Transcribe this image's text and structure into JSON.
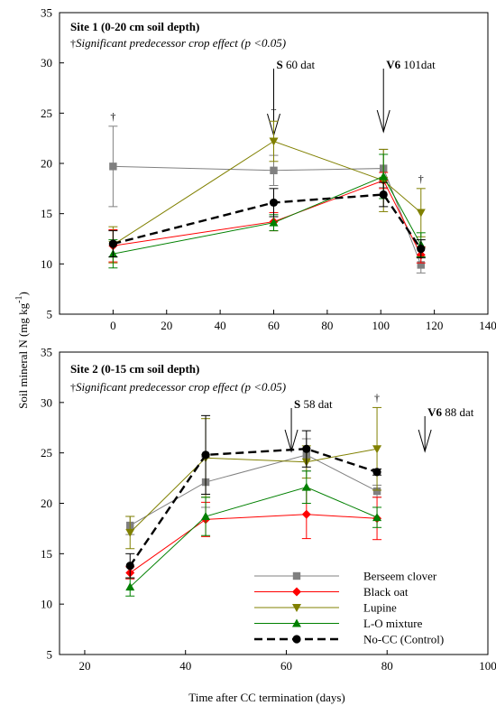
{
  "figure": {
    "ylabel_main": "Soil mineral N (mg kg",
    "ylabel_sup": "-1",
    "ylabel_close": ")",
    "xlabel": "Time after CC termination (days)"
  },
  "legend": {
    "placement": "bottom-right of lower panel",
    "entries": [
      {
        "name": "Berseem clover",
        "color": "#808080",
        "marker": "square",
        "dash": "solid"
      },
      {
        "name": "Black oat",
        "color": "#ff0000",
        "marker": "diamond",
        "dash": "solid"
      },
      {
        "name": "Lupine",
        "color": "#808000",
        "marker": "triangle-down",
        "dash": "solid"
      },
      {
        "name": "L-O mixture",
        "color": "#008000",
        "marker": "triangle-up",
        "dash": "solid"
      },
      {
        "name": "No-CC (Control)",
        "color": "#000000",
        "marker": "circle",
        "dash": "dashed"
      }
    ]
  },
  "chart_data": [
    {
      "type": "line",
      "title": "Site 1 (0-20 cm soil depth)",
      "note_symbol": "†",
      "note_text": "Significant predecessor crop effect (p <0.05)",
      "xlim": [
        -20,
        140
      ],
      "ylim": [
        5,
        35
      ],
      "xticks": [
        "0",
        "20",
        "40",
        "60",
        "80",
        "100",
        "120",
        "140"
      ],
      "xtick_values": [
        0,
        20,
        40,
        60,
        80,
        100,
        120,
        140
      ],
      "yticks": [
        "5",
        "10",
        "15",
        "20",
        "25",
        "30",
        "35"
      ],
      "ytick_values": [
        5,
        10,
        15,
        20,
        25,
        30,
        35
      ],
      "x": [
        0,
        60,
        101,
        115
      ],
      "series": [
        {
          "name": "Berseem clover",
          "values": [
            19.7,
            19.3,
            19.5,
            9.9
          ],
          "err": [
            4.0,
            1.5,
            1.9,
            0.8
          ]
        },
        {
          "name": "Black oat",
          "values": [
            11.8,
            14.2,
            18.3,
            10.9
          ],
          "err": [
            1.6,
            0.9,
            0.8,
            0.8
          ]
        },
        {
          "name": "Lupine",
          "values": [
            11.9,
            22.2,
            18.3,
            15.1
          ],
          "err": [
            1.8,
            2.0,
            3.1,
            2.4
          ]
        },
        {
          "name": "L-O mixture",
          "values": [
            11.0,
            14.1,
            18.7,
            11.9
          ],
          "err": [
            1.4,
            0.8,
            2.2,
            1.2
          ]
        },
        {
          "name": "No-CC (Control)",
          "values": [
            12.0,
            16.1,
            16.9,
            11.5
          ],
          "err": [
            1.3,
            1.4,
            1.2,
            0.9
          ]
        }
      ],
      "daggers": [
        0,
        60,
        115
      ],
      "annotations": [
        {
          "bold": "S",
          "text": " 60 dat",
          "x": 60
        },
        {
          "bold": "V6",
          "text": " 101dat",
          "x": 101
        }
      ]
    },
    {
      "type": "line",
      "title": "Site 2 (0-15 cm soil depth)",
      "note_symbol": "†",
      "note_text": "Significant predecessor crop effect (p <0.05)",
      "xlim": [
        15,
        100
      ],
      "ylim": [
        5,
        35
      ],
      "xticks": [
        "20",
        "40",
        "60",
        "80",
        "100"
      ],
      "xtick_values": [
        20,
        40,
        60,
        80,
        100
      ],
      "yticks": [
        "5",
        "10",
        "15",
        "20",
        "25",
        "30",
        "35"
      ],
      "ytick_values": [
        5,
        10,
        15,
        20,
        25,
        30,
        35
      ],
      "x": [
        29,
        44,
        64,
        78
      ],
      "series": [
        {
          "name": "Berseem clover",
          "values": [
            17.8,
            22.1,
            24.8,
            21.2
          ],
          "err": [
            0.9,
            2.5,
            1.6,
            0.6
          ]
        },
        {
          "name": "Black oat",
          "values": [
            13.1,
            18.4,
            18.9,
            18.5
          ],
          "err": [
            0.6,
            1.7,
            2.4,
            2.1
          ]
        },
        {
          "name": "Lupine",
          "values": [
            17.1,
            24.5,
            24.1,
            25.4
          ],
          "err": [
            1.6,
            3.9,
            1.6,
            4.1
          ]
        },
        {
          "name": "L-O mixture",
          "values": [
            11.7,
            18.7,
            21.6,
            18.6
          ],
          "err": [
            0.9,
            1.9,
            1.6,
            1.0
          ]
        },
        {
          "name": "No-CC (Control)",
          "values": [
            13.8,
            24.8,
            25.4,
            23.1
          ],
          "err": [
            1.2,
            3.9,
            1.8,
            0.3
          ]
        }
      ],
      "daggers": [
        78
      ],
      "annotations": [
        {
          "bold": "S",
          "text": " 58 dat",
          "x": 61
        },
        {
          "bold": "V6",
          "text": " 88 dat",
          "x": 87.5
        }
      ]
    }
  ]
}
